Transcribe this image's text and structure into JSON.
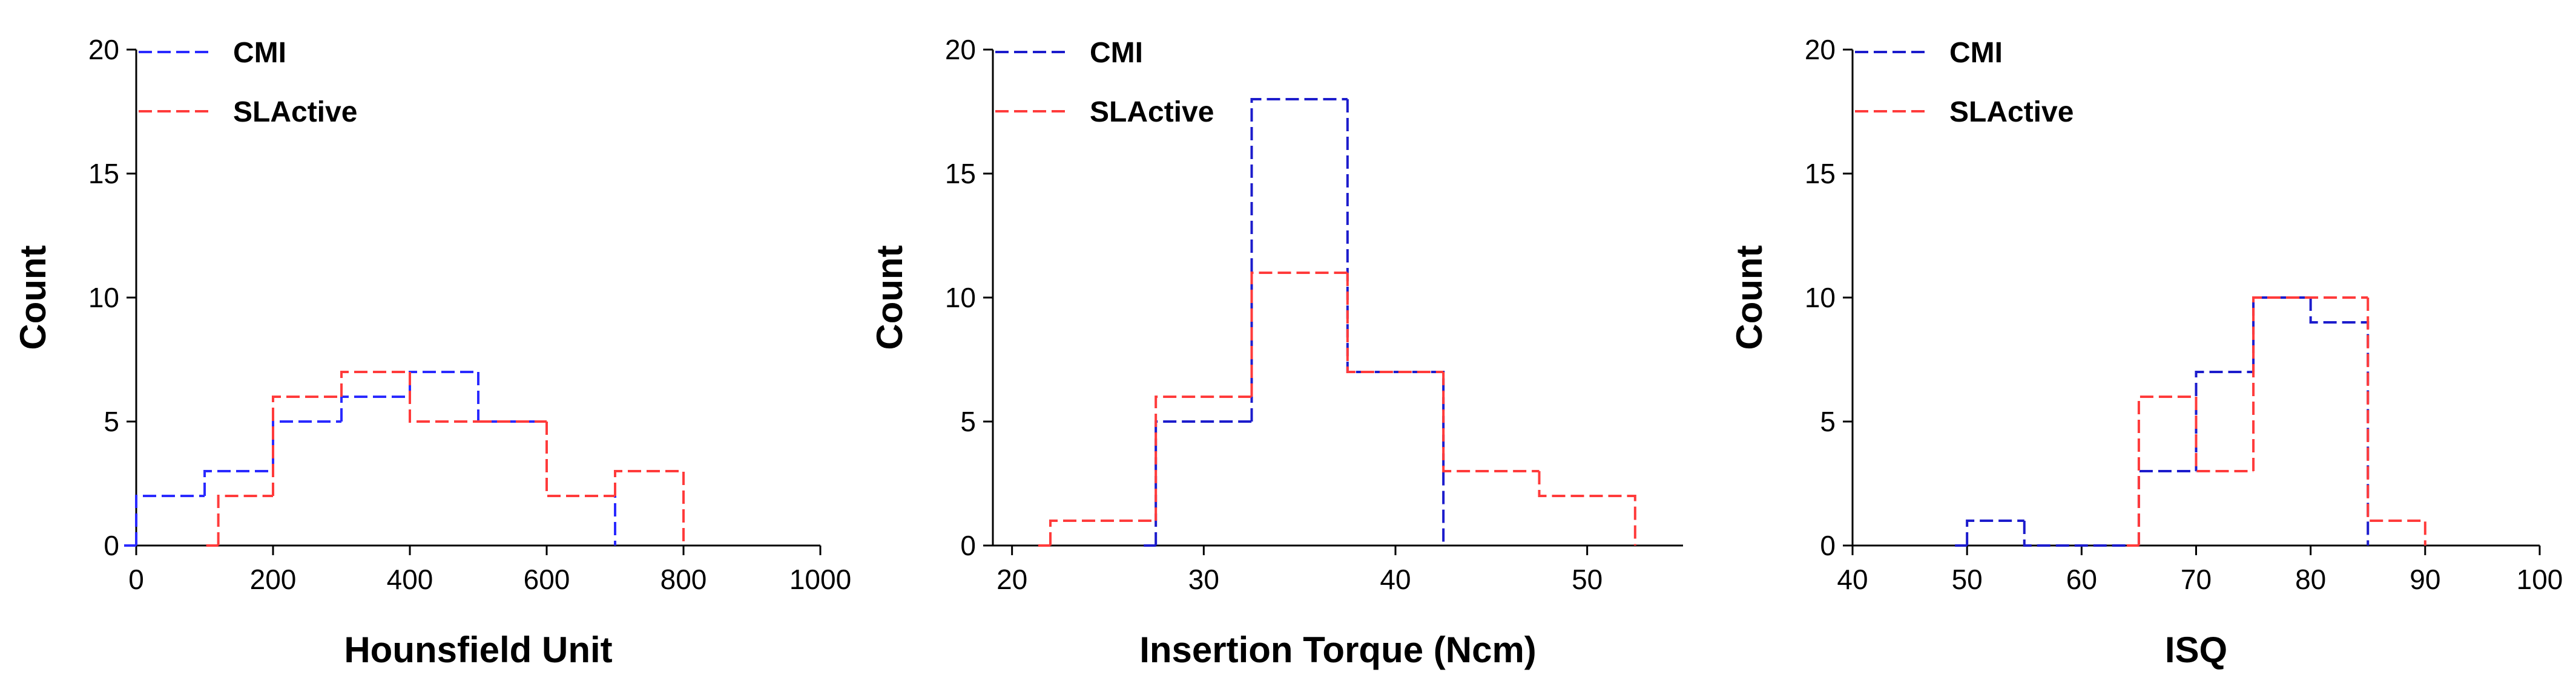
{
  "chart_data": [
    {
      "type": "histogram",
      "title": "",
      "xlabel": "Hounsfield Unit",
      "ylabel": "Count",
      "xlim": [
        0,
        1000
      ],
      "ylim": [
        0,
        20
      ],
      "xticks": [
        0,
        200,
        400,
        600,
        800,
        1000
      ],
      "yticks": [
        0,
        5,
        10,
        15,
        20
      ],
      "legend": "top-left",
      "series": [
        {
          "name": "CMI",
          "color": "#2a2aff",
          "edges": [
            0,
            100,
            200,
            300,
            400,
            500,
            600,
            700
          ],
          "values": [
            2,
            3,
            5,
            6,
            7,
            5,
            2
          ]
        },
        {
          "name": "SLActive",
          "color": "#ff3b3b",
          "edges": [
            120,
            200,
            300,
            400,
            500,
            600,
            700,
            800
          ],
          "values": [
            2,
            6,
            7,
            5,
            5,
            2,
            3
          ]
        }
      ]
    },
    {
      "type": "histogram",
      "title": "",
      "xlabel": "Insertion Torque (Ncm)",
      "ylabel": "Count",
      "xlim": [
        19,
        55
      ],
      "ylim": [
        0,
        20
      ],
      "xticks": [
        20,
        30,
        40,
        50
      ],
      "yticks": [
        0,
        5,
        10,
        15,
        20
      ],
      "legend": "top-left",
      "series": [
        {
          "name": "CMI",
          "color": "#1c1ccc",
          "edges": [
            27.5,
            32.5,
            37.5,
            42.5
          ],
          "values": [
            5,
            18,
            7
          ]
        },
        {
          "name": "SLActive",
          "color": "#ff3b3b",
          "edges": [
            22,
            27.5,
            32.5,
            37.5,
            42.5,
            47.5,
            52.5
          ],
          "values": [
            1,
            6,
            11,
            7,
            3,
            2
          ]
        }
      ]
    },
    {
      "type": "histogram",
      "title": "",
      "xlabel": "ISQ",
      "ylabel": "Count",
      "xlim": [
        40,
        100
      ],
      "ylim": [
        0,
        20
      ],
      "xticks": [
        40,
        50,
        60,
        70,
        80,
        90,
        100
      ],
      "yticks": [
        0,
        5,
        10,
        15,
        20
      ],
      "legend": "top-left",
      "series": [
        {
          "name": "CMI",
          "color": "#1c1ccc",
          "edges": [
            50,
            55,
            65,
            70,
            75,
            80,
            85
          ],
          "values": [
            1,
            0,
            3,
            7,
            10,
            9
          ]
        },
        {
          "name": "SLActive",
          "color": "#ff3b3b",
          "edges": [
            65,
            70,
            75,
            85,
            90
          ],
          "values": [
            6,
            3,
            10,
            1
          ]
        }
      ]
    }
  ]
}
